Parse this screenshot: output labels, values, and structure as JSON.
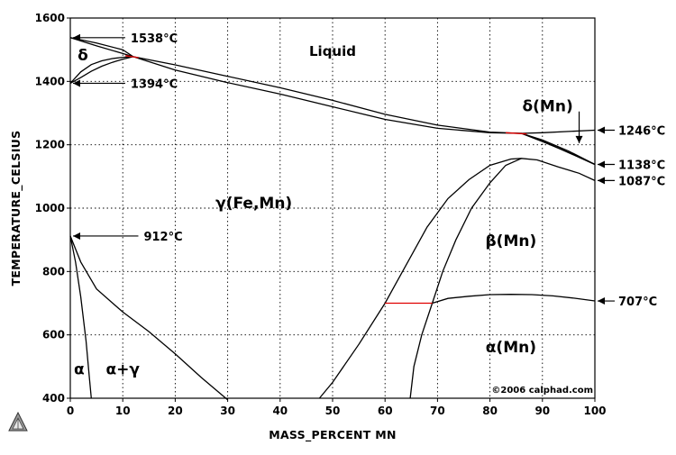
{
  "chart_data": {
    "type": "line",
    "title": "",
    "xlabel": "MASS_PERCENT MN",
    "ylabel": "TEMPERATURE_CELSIUS",
    "xlim": [
      0,
      100
    ],
    "ylim": [
      400,
      1600
    ],
    "grid": true,
    "x_ticks": [
      "0",
      "10",
      "20",
      "30",
      "40",
      "50",
      "60",
      "70",
      "80",
      "90",
      "100"
    ],
    "y_ticks": [
      "400",
      "600",
      "800",
      "1000",
      "1200",
      "1400",
      "1600"
    ],
    "copyright": "©2006 calphad.com",
    "phase_labels": [
      {
        "text": "Liquid",
        "x": 50,
        "y": 1480,
        "style": "phase-sm"
      },
      {
        "text": "δ",
        "x": 2.4,
        "y": 1467,
        "style": "phase"
      },
      {
        "text": "γ(Fe,Mn)",
        "x": 35,
        "y": 1000,
        "style": "phase"
      },
      {
        "text": "β(Mn)",
        "x": 84,
        "y": 880,
        "style": "phase"
      },
      {
        "text": "α(Mn)",
        "x": 84,
        "y": 545,
        "style": "phase"
      },
      {
        "text": "δ(Mn)",
        "x": 91,
        "y": 1305,
        "style": "phase"
      },
      {
        "text": "α",
        "x": 1.7,
        "y": 475,
        "style": "phase"
      },
      {
        "text": "α+γ",
        "x": 10,
        "y": 475,
        "style": "phase"
      }
    ],
    "temperature_annotations": [
      {
        "label": "1538°C",
        "x": 0,
        "y": 1538,
        "side": "right",
        "text_x": 11.5
      },
      {
        "label": "1394°C",
        "x": 0,
        "y": 1394,
        "side": "right",
        "text_x": 11.5
      },
      {
        "label": "912°C",
        "x": 0,
        "y": 912,
        "side": "right",
        "text_x": 14
      },
      {
        "label": "1246°C",
        "x": 100,
        "y": 1246,
        "side": "left"
      },
      {
        "label": "1138°C",
        "x": 100,
        "y": 1138,
        "side": "left"
      },
      {
        "label": "1087°C",
        "x": 100,
        "y": 1087,
        "side": "left"
      },
      {
        "label": "707°C",
        "x": 100,
        "y": 707,
        "side": "left"
      }
    ],
    "series": [
      {
        "id": "liquidus",
        "color": "#000000",
        "points": [
          [
            0,
            1538
          ],
          [
            5,
            1521
          ],
          [
            10,
            1500
          ],
          [
            12,
            1478
          ],
          [
            20,
            1452
          ],
          [
            30,
            1416
          ],
          [
            40,
            1380
          ],
          [
            50,
            1340
          ],
          [
            60,
            1296
          ],
          [
            70,
            1262
          ],
          [
            80,
            1240
          ],
          [
            86,
            1236
          ],
          [
            90,
            1215
          ],
          [
            95,
            1180
          ],
          [
            100,
            1138
          ]
        ]
      },
      {
        "id": "solidus",
        "color": "#000000",
        "points": [
          [
            0,
            1538
          ],
          [
            5,
            1512
          ],
          [
            10,
            1488
          ],
          [
            12,
            1478
          ],
          [
            20,
            1436
          ],
          [
            30,
            1396
          ],
          [
            40,
            1360
          ],
          [
            50,
            1320
          ],
          [
            60,
            1280
          ],
          [
            70,
            1252
          ],
          [
            80,
            1238
          ],
          [
            86,
            1236
          ],
          [
            90,
            1210
          ],
          [
            95,
            1176
          ],
          [
            100,
            1138
          ]
        ]
      },
      {
        "id": "delta-gamma-upper",
        "color": "#000000",
        "points": [
          [
            0,
            1394
          ],
          [
            2,
            1430
          ],
          [
            4,
            1453
          ],
          [
            6,
            1465
          ],
          [
            8,
            1472
          ],
          [
            10,
            1476
          ],
          [
            12,
            1478
          ]
        ]
      },
      {
        "id": "delta-gamma-lower",
        "color": "#000000",
        "points": [
          [
            0,
            1394
          ],
          [
            2,
            1412
          ],
          [
            4,
            1432
          ],
          [
            6,
            1448
          ],
          [
            8,
            1460
          ],
          [
            10,
            1470
          ],
          [
            12,
            1478
          ]
        ]
      },
      {
        "id": "deltaMn-upper",
        "color": "#000000",
        "points": [
          [
            86,
            1236
          ],
          [
            90,
            1238
          ],
          [
            95,
            1242
          ],
          [
            100,
            1246
          ]
        ]
      },
      {
        "id": "deltaMn-lower",
        "color": "#000000",
        "points": [
          [
            86,
            1236
          ],
          [
            90,
            1212
          ],
          [
            95,
            1175
          ],
          [
            100,
            1138
          ]
        ]
      },
      {
        "id": "gamma-beta-outer",
        "color": "#000000",
        "points": [
          [
            47.5,
            400
          ],
          [
            50,
            450
          ],
          [
            55,
            570
          ],
          [
            60,
            700
          ],
          [
            62,
            760
          ],
          [
            65,
            850
          ],
          [
            68,
            940
          ],
          [
            72,
            1030
          ],
          [
            76,
            1090
          ],
          [
            80,
            1135
          ],
          [
            84,
            1155
          ],
          [
            86,
            1157
          ],
          [
            89,
            1152
          ],
          [
            93,
            1130
          ],
          [
            97,
            1110
          ],
          [
            100,
            1087
          ]
        ]
      },
      {
        "id": "gamma-beta-inner",
        "color": "#000000",
        "points": [
          [
            64.8,
            400
          ],
          [
            65.5,
            500
          ],
          [
            67,
            600
          ],
          [
            69,
            700
          ],
          [
            71,
            800
          ],
          [
            73.5,
            900
          ],
          [
            76.5,
            1000
          ],
          [
            80,
            1080
          ],
          [
            83,
            1135
          ],
          [
            86,
            1157
          ]
        ]
      },
      {
        "id": "beta-alpha",
        "color": "#000000",
        "points": [
          [
            69,
            700
          ],
          [
            72,
            715
          ],
          [
            76,
            722
          ],
          [
            80,
            727
          ],
          [
            84,
            728
          ],
          [
            88,
            727
          ],
          [
            92,
            723
          ],
          [
            96,
            716
          ],
          [
            100,
            707
          ]
        ]
      },
      {
        "id": "alpha-gamma-upper",
        "color": "#000000",
        "points": [
          [
            0,
            912
          ],
          [
            2,
            830
          ],
          [
            5,
            745
          ],
          [
            10,
            672
          ],
          [
            15,
            610
          ],
          [
            20,
            540
          ],
          [
            25,
            465
          ],
          [
            30,
            395
          ]
        ]
      },
      {
        "id": "alpha-gamma-lower",
        "color": "#000000",
        "points": [
          [
            0,
            912
          ],
          [
            1,
            830
          ],
          [
            2,
            720
          ],
          [
            3,
            580
          ],
          [
            3.6,
            470
          ],
          [
            4,
            400
          ]
        ]
      }
    ],
    "tie_lines": [
      {
        "color": "#e00000",
        "points": [
          [
            10.5,
            1481
          ],
          [
            13,
            1475
          ]
        ]
      },
      {
        "color": "#e00000",
        "points": [
          [
            60,
            700
          ],
          [
            69,
            700
          ]
        ]
      },
      {
        "color": "#e00000",
        "points": [
          [
            83,
            1238
          ],
          [
            87,
            1234
          ]
        ]
      }
    ],
    "extra_arrow": {
      "from": [
        97,
        1305
      ],
      "to": [
        97,
        1205
      ]
    }
  }
}
